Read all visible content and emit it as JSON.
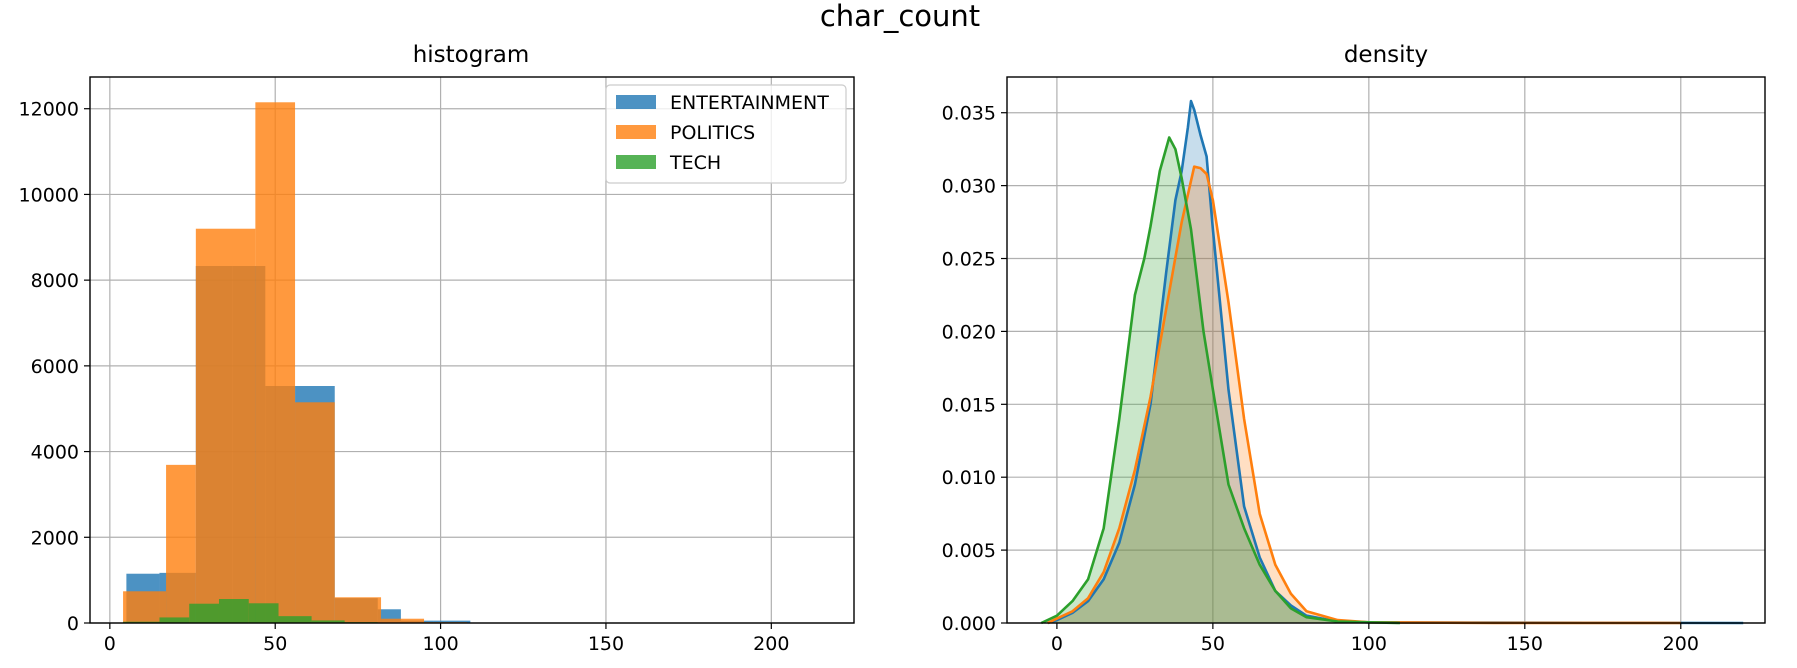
{
  "figure_title": "char_count",
  "colors": {
    "entertainment": "#1f77b4",
    "politics": "#ff7f0e",
    "tech": "#2ca02c"
  },
  "chart_data": [
    {
      "type": "bar",
      "subtype": "histogram",
      "title": "histogram",
      "xlabel": "",
      "ylabel": "",
      "xlim": [
        -6,
        225
      ],
      "ylim": [
        0,
        12740
      ],
      "xticks": [
        0,
        50,
        100,
        150,
        200
      ],
      "yticks": [
        0,
        2000,
        4000,
        6000,
        8000,
        10000,
        12000
      ],
      "grid": true,
      "legend_position": "top-right",
      "series": [
        {
          "name": "ENTERTAINMENT",
          "color": "#1f77b4",
          "bins": [
            {
              "x0": 5,
              "x1": 15,
              "count": 1150
            },
            {
              "x0": 15,
              "x1": 26,
              "count": 1170
            },
            {
              "x0": 26,
              "x1": 37,
              "count": 8330
            },
            {
              "x0": 37,
              "x1": 47,
              "count": 8330
            },
            {
              "x0": 47,
              "x1": 56,
              "count": 5530
            },
            {
              "x0": 56,
              "x1": 68,
              "count": 5530
            },
            {
              "x0": 68,
              "x1": 81,
              "count": 580
            },
            {
              "x0": 81,
              "x1": 88,
              "count": 320
            },
            {
              "x0": 88,
              "x1": 98,
              "count": 55
            },
            {
              "x0": 98,
              "x1": 109,
              "count": 55
            }
          ]
        },
        {
          "name": "POLITICS",
          "color": "#ff7f0e",
          "bins": [
            {
              "x0": 4,
              "x1": 17,
              "count": 740
            },
            {
              "x0": 17,
              "x1": 26,
              "count": 3690
            },
            {
              "x0": 26,
              "x1": 44,
              "count": 9200
            },
            {
              "x0": 44,
              "x1": 56,
              "count": 12150
            },
            {
              "x0": 56,
              "x1": 68,
              "count": 5150
            },
            {
              "x0": 68,
              "x1": 82,
              "count": 600
            },
            {
              "x0": 82,
              "x1": 95,
              "count": 100
            },
            {
              "x0": 95,
              "x1": 108,
              "count": 20
            }
          ]
        },
        {
          "name": "TECH",
          "color": "#2ca02c",
          "bins": [
            {
              "x0": 4,
              "x1": 15,
              "count": 30
            },
            {
              "x0": 15,
              "x1": 24,
              "count": 130
            },
            {
              "x0": 24,
              "x1": 33,
              "count": 450
            },
            {
              "x0": 33,
              "x1": 42,
              "count": 560
            },
            {
              "x0": 42,
              "x1": 51,
              "count": 460
            },
            {
              "x0": 51,
              "x1": 61,
              "count": 160
            },
            {
              "x0": 61,
              "x1": 71,
              "count": 60
            },
            {
              "x0": 71,
              "x1": 81,
              "count": 20
            }
          ]
        }
      ]
    },
    {
      "type": "area",
      "subtype": "density",
      "title": "density",
      "xlabel": "",
      "ylabel": "",
      "xlim": [
        -16,
        227
      ],
      "ylim": [
        0,
        0.03745
      ],
      "xticks": [
        0,
        50,
        100,
        150,
        200
      ],
      "yticks": [
        0.0,
        0.005,
        0.01,
        0.015,
        0.02,
        0.025,
        0.03,
        0.035
      ],
      "ytick_labels": [
        "0.000",
        "0.005",
        "0.010",
        "0.015",
        "0.020",
        "0.025",
        "0.030",
        "0.035"
      ],
      "grid": true,
      "series": [
        {
          "name": "ENTERTAINMENT",
          "color": "#1f77b4",
          "points": [
            [
              -3,
              0
            ],
            [
              0,
              0.0002
            ],
            [
              5,
              0.0007
            ],
            [
              10,
              0.0015
            ],
            [
              15,
              0.003
            ],
            [
              20,
              0.0055
            ],
            [
              25,
              0.0095
            ],
            [
              30,
              0.015
            ],
            [
              35,
              0.024
            ],
            [
              38,
              0.029
            ],
            [
              40,
              0.031
            ],
            [
              42,
              0.034
            ],
            [
              43,
              0.0358
            ],
            [
              44,
              0.0352
            ],
            [
              46,
              0.0335
            ],
            [
              48,
              0.032
            ],
            [
              50,
              0.027
            ],
            [
              55,
              0.016
            ],
            [
              60,
              0.008
            ],
            [
              65,
              0.0045
            ],
            [
              70,
              0.0022
            ],
            [
              75,
              0.0012
            ],
            [
              80,
              0.0005
            ],
            [
              90,
              0.0001
            ],
            [
              100,
              5e-05
            ],
            [
              150,
              2e-05
            ],
            [
              220,
              0
            ]
          ]
        },
        {
          "name": "POLITICS",
          "color": "#ff7f0e",
          "points": [
            [
              -3,
              0
            ],
            [
              0,
              0.0003
            ],
            [
              5,
              0.0008
            ],
            [
              10,
              0.0017
            ],
            [
              15,
              0.0035
            ],
            [
              20,
              0.0065
            ],
            [
              25,
              0.0105
            ],
            [
              30,
              0.0155
            ],
            [
              35,
              0.0215
            ],
            [
              40,
              0.0275
            ],
            [
              44,
              0.0313
            ],
            [
              46,
              0.0312
            ],
            [
              48,
              0.0308
            ],
            [
              50,
              0.029
            ],
            [
              55,
              0.022
            ],
            [
              60,
              0.014
            ],
            [
              65,
              0.0075
            ],
            [
              70,
              0.004
            ],
            [
              75,
              0.002
            ],
            [
              80,
              0.0008
            ],
            [
              90,
              0.0002
            ],
            [
              100,
              5e-05
            ],
            [
              140,
              1e-05
            ],
            [
              200,
              0
            ]
          ]
        },
        {
          "name": "TECH",
          "color": "#2ca02c",
          "points": [
            [
              -5,
              0
            ],
            [
              0,
              0.0005
            ],
            [
              5,
              0.0015
            ],
            [
              10,
              0.003
            ],
            [
              15,
              0.0065
            ],
            [
              20,
              0.014
            ],
            [
              25,
              0.0225
            ],
            [
              28,
              0.025
            ],
            [
              30,
              0.0272
            ],
            [
              33,
              0.031
            ],
            [
              36,
              0.0333
            ],
            [
              38,
              0.0325
            ],
            [
              40,
              0.0305
            ],
            [
              43,
              0.027
            ],
            [
              47,
              0.02
            ],
            [
              50,
              0.016
            ],
            [
              55,
              0.0095
            ],
            [
              60,
              0.0065
            ],
            [
              65,
              0.004
            ],
            [
              70,
              0.0022
            ],
            [
              75,
              0.001
            ],
            [
              80,
              0.0004
            ],
            [
              90,
              0.0001
            ],
            [
              100,
              5e-05
            ],
            [
              110,
              0
            ]
          ]
        }
      ]
    }
  ]
}
